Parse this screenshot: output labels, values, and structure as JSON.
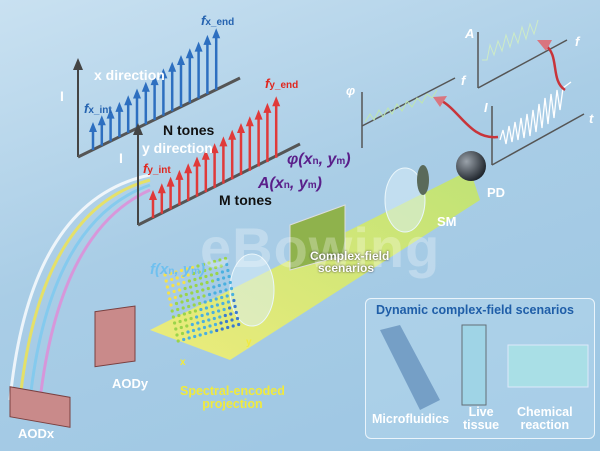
{
  "watermark": "eBowing",
  "tone_x": {
    "direction": "x direction",
    "axis": "I",
    "f_start": "f",
    "f_start_sub": "x_int",
    "f_end": "f",
    "f_end_sub": "x_end",
    "count": "N tones",
    "color": "#2d6fc0"
  },
  "tone_y": {
    "direction": "y direction",
    "axis": "I",
    "f_start": "f",
    "f_start_sub": "y_int",
    "f_end": "f",
    "f_end_sub": "y_end",
    "count": "M tones",
    "color": "#e03a3a"
  },
  "field": {
    "phase": "φ(x",
    "phase_sub_n": "n",
    "phase_mid": ", y",
    "phase_sub_m": "m",
    "close": ")",
    "amp": "A(x"
  },
  "scenario_label": [
    "Complex-field",
    "scenarios"
  ],
  "projection": {
    "func": "f(x",
    "label": [
      "Spectral-encoded",
      "projection"
    ],
    "axis_x": "x",
    "axis_y": "y"
  },
  "devices": {
    "aodx": "AODx",
    "aody": "AODy",
    "sm": "SM",
    "pd": "PD"
  },
  "plots": {
    "phase_axis": "φ",
    "phase_f": "f",
    "amp_axis": "A",
    "amp_f": "f",
    "time_axis": "I",
    "time_t": "t"
  },
  "panel": {
    "title": "Dynamic complex-field scenarios",
    "items": [
      {
        "label": [
          "Microfluidics"
        ]
      },
      {
        "label": [
          "Live",
          "tissue"
        ]
      },
      {
        "label": [
          "Chemical",
          "reaction"
        ]
      }
    ]
  }
}
